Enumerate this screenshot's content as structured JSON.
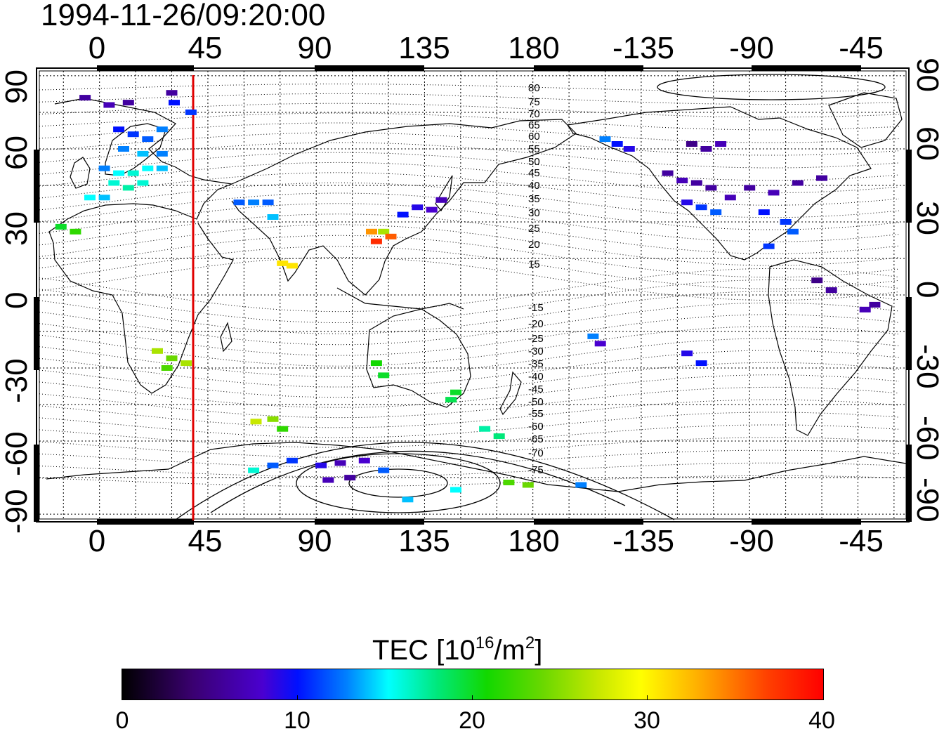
{
  "title": "1994-11-26/09:20:00",
  "axes": {
    "lon_ticks_top": [
      "0",
      "45",
      "90",
      "135",
      "180",
      "-135",
      "-90",
      "-45"
    ],
    "lon_ticks_bottom": [
      "0",
      "45",
      "90",
      "135",
      "180",
      "-135",
      "-90",
      "-45"
    ],
    "lat_ticks_left": [
      "90",
      "60",
      "30",
      "0",
      "-30",
      "-60",
      "-90"
    ],
    "lat_ticks_right": [
      "90",
      "60",
      "30",
      "0",
      "-30",
      "-60",
      "-90"
    ],
    "lon_range": [
      -25,
      335
    ],
    "lat_range": [
      -92,
      92
    ]
  },
  "contour_labels": [
    "80",
    "75",
    "70",
    "65",
    "60",
    "55",
    "50",
    "45",
    "40",
    "35",
    "30",
    "25",
    "20",
    "15",
    "-15",
    "-20",
    "-25",
    "-30",
    "-35",
    "-40",
    "-45",
    "-50",
    "-55",
    "-60",
    "-65",
    "-70",
    "-75"
  ],
  "terminator": {
    "lon": 40,
    "color": "#e00000"
  },
  "colorbar": {
    "title_main": "TEC  [10",
    "title_sup1": "16",
    "title_mid": "/m",
    "title_sup2": "2",
    "title_end": "]",
    "tick_labels": [
      "0",
      "10",
      "20",
      "30",
      "40"
    ],
    "range": [
      0,
      40
    ]
  },
  "chart_data": {
    "type": "scatter",
    "title": "1994-11-26/09:20:00",
    "xlabel": "",
    "ylabel": "",
    "xlim": [
      -25,
      335
    ],
    "ylim": [
      -92,
      92
    ],
    "grid": true,
    "color_scale": {
      "label": "TEC [10^16/m^2]",
      "min": 0,
      "max": 40
    },
    "points": [
      {
        "lon": -6,
        "lat": 81,
        "tec": 6
      },
      {
        "lon": 4,
        "lat": 78,
        "tec": 7
      },
      {
        "lon": 12,
        "lat": 79,
        "tec": 6
      },
      {
        "lon": 30,
        "lat": 83,
        "tec": 6
      },
      {
        "lon": 31,
        "lat": 79,
        "tec": 10
      },
      {
        "lon": 38,
        "lat": 75,
        "tec": 11
      },
      {
        "lon": 8,
        "lat": 68,
        "tec": 10
      },
      {
        "lon": 14,
        "lat": 66,
        "tec": 11
      },
      {
        "lon": 20,
        "lat": 64,
        "tec": 12
      },
      {
        "lon": 26,
        "lat": 68,
        "tec": 13
      },
      {
        "lon": 10,
        "lat": 60,
        "tec": 13
      },
      {
        "lon": 18,
        "lat": 58,
        "tec": 14
      },
      {
        "lon": 26,
        "lat": 58,
        "tec": 13
      },
      {
        "lon": 2,
        "lat": 52,
        "tec": 13
      },
      {
        "lon": 8,
        "lat": 50,
        "tec": 15
      },
      {
        "lon": 14,
        "lat": 50,
        "tec": 16
      },
      {
        "lon": 20,
        "lat": 52,
        "tec": 15
      },
      {
        "lon": 26,
        "lat": 52,
        "tec": 14
      },
      {
        "lon": 6,
        "lat": 46,
        "tec": 16
      },
      {
        "lon": 12,
        "lat": 44,
        "tec": 17
      },
      {
        "lon": 18,
        "lat": 46,
        "tec": 16
      },
      {
        "lon": -4,
        "lat": 40,
        "tec": 15
      },
      {
        "lon": 2,
        "lat": 40,
        "tec": 14
      },
      {
        "lon": -16,
        "lat": 28,
        "tec": 20
      },
      {
        "lon": -10,
        "lat": 26,
        "tec": 22
      },
      {
        "lon": 58,
        "lat": 38,
        "tec": 12
      },
      {
        "lon": 64,
        "lat": 38,
        "tec": 13
      },
      {
        "lon": 70,
        "lat": 38,
        "tec": 12
      },
      {
        "lon": 72,
        "lat": 32,
        "tec": 14
      },
      {
        "lon": 76,
        "lat": 13,
        "tec": 31
      },
      {
        "lon": 80,
        "lat": 12,
        "tec": 31
      },
      {
        "lon": 113,
        "lat": 26,
        "tec": 34
      },
      {
        "lon": 118,
        "lat": 26,
        "tec": 26
      },
      {
        "lon": 115,
        "lat": 22,
        "tec": 38
      },
      {
        "lon": 121,
        "lat": 24,
        "tec": 36
      },
      {
        "lon": 132,
        "lat": 36,
        "tec": 9
      },
      {
        "lon": 138,
        "lat": 35,
        "tec": 8
      },
      {
        "lon": 142,
        "lat": 39,
        "tec": 7
      },
      {
        "lon": 126,
        "lat": 33,
        "tec": 10
      },
      {
        "lon": 24,
        "lat": -23,
        "tec": 26
      },
      {
        "lon": 30,
        "lat": -26,
        "tec": 24
      },
      {
        "lon": 28,
        "lat": -30,
        "tec": 23
      },
      {
        "lon": 36,
        "lat": -28,
        "tec": 26
      },
      {
        "lon": 115,
        "lat": -28,
        "tec": 21
      },
      {
        "lon": 118,
        "lat": -33,
        "tec": 20
      },
      {
        "lon": 148,
        "lat": -40,
        "tec": 20
      },
      {
        "lon": 146,
        "lat": -43,
        "tec": 19
      },
      {
        "lon": 160,
        "lat": -55,
        "tec": 17
      },
      {
        "lon": 166,
        "lat": -58,
        "tec": 18
      },
      {
        "lon": 65,
        "lat": -52,
        "tec": 27
      },
      {
        "lon": 72,
        "lat": -51,
        "tec": 25
      },
      {
        "lon": 76,
        "lat": -55,
        "tec": 22
      },
      {
        "lon": 64,
        "lat": -72,
        "tec": 16
      },
      {
        "lon": 72,
        "lat": -70,
        "tec": 12
      },
      {
        "lon": 80,
        "lat": -68,
        "tec": 11
      },
      {
        "lon": 92,
        "lat": -70,
        "tec": 9
      },
      {
        "lon": 100,
        "lat": -69,
        "tec": 7
      },
      {
        "lon": 110,
        "lat": -68,
        "tec": 8
      },
      {
        "lon": 118,
        "lat": -72,
        "tec": 12
      },
      {
        "lon": 95,
        "lat": -76,
        "tec": 7
      },
      {
        "lon": 104,
        "lat": -75,
        "tec": 6
      },
      {
        "lon": 128,
        "lat": -84,
        "tec": 14
      },
      {
        "lon": 148,
        "lat": -80,
        "tec": 15
      },
      {
        "lon": 170,
        "lat": -77,
        "tec": 23
      },
      {
        "lon": 178,
        "lat": -78,
        "tec": 24
      },
      {
        "lon": 200,
        "lat": -78,
        "tec": 13
      },
      {
        "lon": 210,
        "lat": 64,
        "tec": 13
      },
      {
        "lon": 215,
        "lat": 62,
        "tec": 10
      },
      {
        "lon": 220,
        "lat": 60,
        "tec": 9
      },
      {
        "lon": 236,
        "lat": 50,
        "tec": 6
      },
      {
        "lon": 242,
        "lat": 47,
        "tec": 7
      },
      {
        "lon": 248,
        "lat": 46,
        "tec": 6
      },
      {
        "lon": 254,
        "lat": 44,
        "tec": 6
      },
      {
        "lon": 244,
        "lat": 38,
        "tec": 9
      },
      {
        "lon": 250,
        "lat": 36,
        "tec": 11
      },
      {
        "lon": 256,
        "lat": 34,
        "tec": 12
      },
      {
        "lon": 262,
        "lat": 40,
        "tec": 7
      },
      {
        "lon": 270,
        "lat": 44,
        "tec": 6
      },
      {
        "lon": 280,
        "lat": 42,
        "tec": 7
      },
      {
        "lon": 290,
        "lat": 46,
        "tec": 6
      },
      {
        "lon": 300,
        "lat": 48,
        "tec": 6
      },
      {
        "lon": 276,
        "lat": 34,
        "tec": 10
      },
      {
        "lon": 285,
        "lat": 30,
        "tec": 11
      },
      {
        "lon": 288,
        "lat": 26,
        "tec": 12
      },
      {
        "lon": 278,
        "lat": 20,
        "tec": 11
      },
      {
        "lon": 246,
        "lat": 62,
        "tec": 5
      },
      {
        "lon": 252,
        "lat": 60,
        "tec": 6
      },
      {
        "lon": 258,
        "lat": 62,
        "tec": 7
      },
      {
        "lon": 298,
        "lat": 6,
        "tec": 5
      },
      {
        "lon": 304,
        "lat": 2,
        "tec": 6
      },
      {
        "lon": 318,
        "lat": -6,
        "tec": 7
      },
      {
        "lon": 322,
        "lat": -4,
        "tec": 6
      },
      {
        "lon": 205,
        "lat": -17,
        "tec": 13
      },
      {
        "lon": 208,
        "lat": -20,
        "tec": 8
      },
      {
        "lon": 244,
        "lat": -24,
        "tec": 9
      },
      {
        "lon": 250,
        "lat": -28,
        "tec": 10
      }
    ]
  }
}
